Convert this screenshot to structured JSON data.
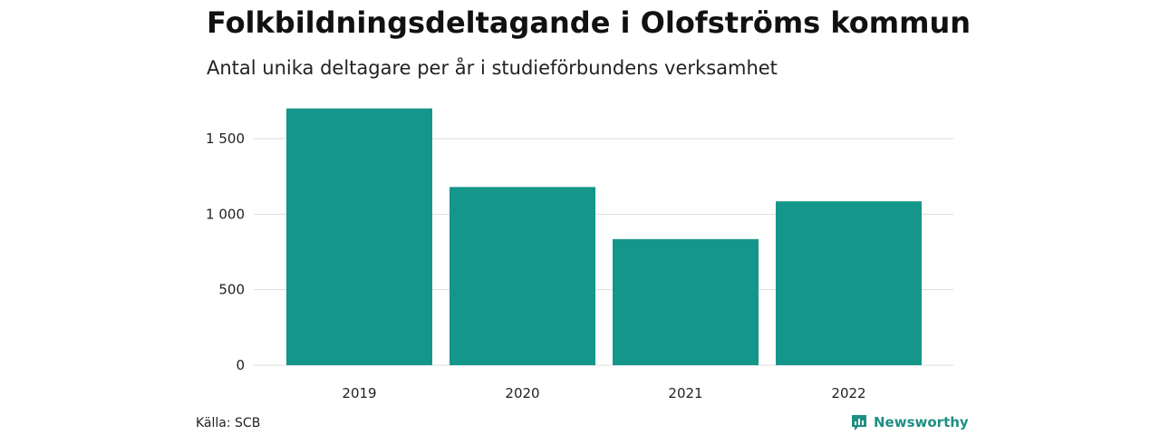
{
  "title": "Folkbildningsdeltagande i Olofströms kommun",
  "subtitle": "Antal unika deltagare per år i studieförbundens verksamhet",
  "source": "Källa: SCB",
  "brand": "Newsworthy",
  "colors": {
    "bar": "#15968a",
    "grid": "#dddddd",
    "brand": "#1f8f83"
  },
  "chart_data": {
    "type": "bar",
    "categories": [
      "2019",
      "2020",
      "2021",
      "2022"
    ],
    "values": [
      1700,
      1180,
      835,
      1085
    ],
    "ylim": [
      0,
      1800
    ],
    "yticks": [
      0,
      500,
      1000,
      1500
    ],
    "ytick_labels": [
      "0",
      "500",
      "1 000",
      "1 500"
    ],
    "grid": true,
    "xlabel": "",
    "ylabel": ""
  }
}
